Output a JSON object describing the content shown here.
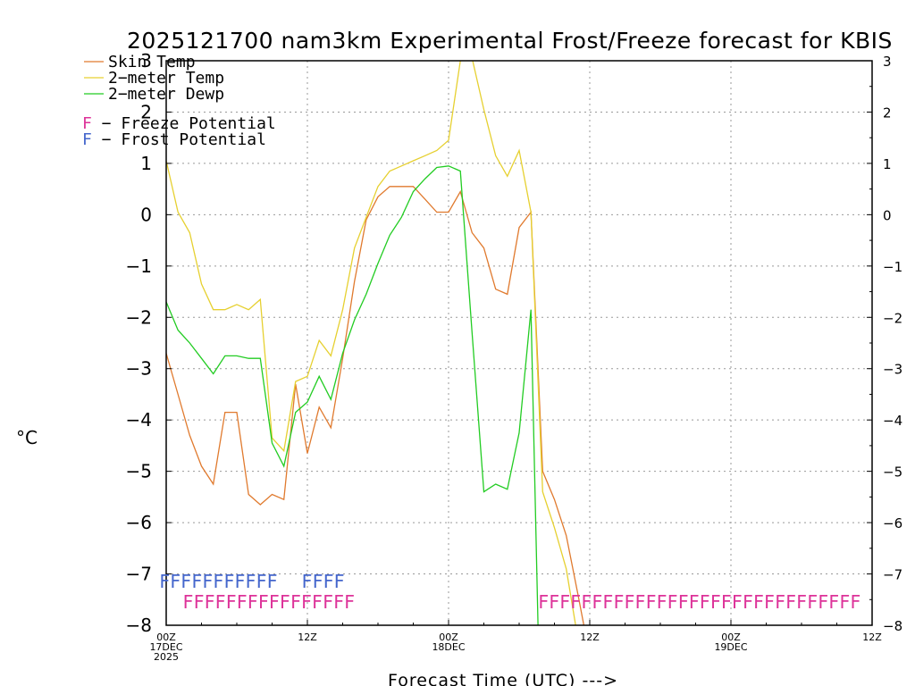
{
  "chart_data": {
    "type": "line",
    "title": "2025121700 nam3km Experimental Frost/Freeze forecast for KBIS",
    "xlabel": "Forecast Time (UTC) --->",
    "ylabel": "°C",
    "ylim": [
      -8,
      3
    ],
    "xlim": [
      0,
      60
    ],
    "yticks": [
      3,
      2,
      1,
      0,
      -1,
      -2,
      -3,
      -4,
      -5,
      -6,
      -7,
      -8
    ],
    "ytick_labels": [
      "3",
      "2",
      "1",
      "0",
      "−1",
      "−2",
      "−3",
      "−4",
      "−5",
      "−6",
      "−7",
      "−8"
    ],
    "xticks": [
      {
        "x": 0,
        "lines": [
          "00Z",
          "17DEC",
          "2025"
        ]
      },
      {
        "x": 12,
        "lines": [
          "12Z"
        ]
      },
      {
        "x": 24,
        "lines": [
          "00Z",
          "18DEC"
        ]
      },
      {
        "x": 36,
        "lines": [
          "12Z"
        ]
      },
      {
        "x": 48,
        "lines": [
          "00Z",
          "19DEC"
        ]
      },
      {
        "x": 60,
        "lines": [
          "12Z"
        ]
      }
    ],
    "grid": true,
    "legend_position": "top-left",
    "series": [
      {
        "name": "Skin Temp",
        "label": "Skin Temp",
        "color": "#e07a2e",
        "points": [
          [
            0,
            -2.7
          ],
          [
            1,
            -3.5
          ],
          [
            2,
            -4.3
          ],
          [
            3,
            -4.9
          ],
          [
            4,
            -5.25
          ],
          [
            5,
            -3.85
          ],
          [
            6,
            -3.85
          ],
          [
            7,
            -5.45
          ],
          [
            8,
            -5.65
          ],
          [
            9,
            -5.45
          ],
          [
            10,
            -5.55
          ],
          [
            11,
            -3.3
          ],
          [
            12,
            -4.65
          ],
          [
            13,
            -3.75
          ],
          [
            14,
            -4.15
          ],
          [
            15,
            -2.8
          ],
          [
            16,
            -1.3
          ],
          [
            17,
            -0.1
          ],
          [
            18,
            0.35
          ],
          [
            19,
            0.55
          ],
          [
            20,
            0.55
          ],
          [
            21,
            0.55
          ],
          [
            22,
            0.3
          ],
          [
            23,
            0.05
          ],
          [
            24,
            0.05
          ],
          [
            25,
            0.45
          ],
          [
            26,
            -0.35
          ],
          [
            27,
            -0.65
          ],
          [
            28,
            -1.45
          ],
          [
            29,
            -1.55
          ],
          [
            30,
            -0.25
          ],
          [
            31,
            0.05
          ],
          [
            32,
            -5.0
          ],
          [
            33,
            -5.55
          ],
          [
            34,
            -6.25
          ],
          [
            35,
            -7.4
          ],
          [
            35.5,
            -8.0
          ]
        ]
      },
      {
        "name": "2-meter Temp",
        "label": "2−meter Temp",
        "color": "#e6d030",
        "points": [
          [
            0,
            1.05
          ],
          [
            1,
            0.05
          ],
          [
            2,
            -0.35
          ],
          [
            3,
            -1.35
          ],
          [
            4,
            -1.85
          ],
          [
            5,
            -1.85
          ],
          [
            6,
            -1.75
          ],
          [
            7,
            -1.85
          ],
          [
            8,
            -1.65
          ],
          [
            9,
            -4.35
          ],
          [
            10,
            -4.6
          ],
          [
            11,
            -3.25
          ],
          [
            12,
            -3.15
          ],
          [
            13,
            -2.45
          ],
          [
            14,
            -2.75
          ],
          [
            15,
            -1.85
          ],
          [
            16,
            -0.65
          ],
          [
            17,
            -0.05
          ],
          [
            18,
            0.55
          ],
          [
            19,
            0.85
          ],
          [
            20,
            0.95
          ],
          [
            21,
            1.05
          ],
          [
            22,
            1.15
          ],
          [
            23,
            1.25
          ],
          [
            24,
            1.45
          ],
          [
            25,
            3.0
          ],
          [
            26,
            3.05
          ],
          [
            27,
            2.05
          ],
          [
            28,
            1.15
          ],
          [
            29,
            0.75
          ],
          [
            30,
            1.25
          ],
          [
            31,
            0.05
          ],
          [
            32,
            -5.4
          ],
          [
            33,
            -6.1
          ],
          [
            34,
            -6.9
          ],
          [
            34.8,
            -8.0
          ]
        ]
      },
      {
        "name": "2-meter Dewp",
        "label": "2−meter Dewp",
        "color": "#22cc22",
        "points": [
          [
            0,
            -1.7
          ],
          [
            1,
            -2.25
          ],
          [
            2,
            -2.5
          ],
          [
            3,
            -2.8
          ],
          [
            4,
            -3.1
          ],
          [
            5,
            -2.75
          ],
          [
            6,
            -2.75
          ],
          [
            7,
            -2.8
          ],
          [
            8,
            -2.8
          ],
          [
            9,
            -4.45
          ],
          [
            10,
            -4.9
          ],
          [
            11,
            -3.85
          ],
          [
            12,
            -3.65
          ],
          [
            13,
            -3.15
          ],
          [
            14,
            -3.6
          ],
          [
            15,
            -2.7
          ],
          [
            16,
            -2.05
          ],
          [
            17,
            -1.55
          ],
          [
            18,
            -0.95
          ],
          [
            19,
            -0.4
          ],
          [
            20,
            -0.05
          ],
          [
            21,
            0.45
          ],
          [
            22,
            0.7
          ],
          [
            23,
            0.92
          ],
          [
            24,
            0.95
          ],
          [
            25,
            0.85
          ],
          [
            26,
            -2.3
          ],
          [
            27,
            -5.4
          ],
          [
            28,
            -5.25
          ],
          [
            29,
            -5.35
          ],
          [
            30,
            -4.25
          ],
          [
            31,
            -1.85
          ],
          [
            31.6,
            -8.0
          ]
        ]
      }
    ],
    "flag_legend": [
      {
        "symbol": "F",
        "text": " − Freeze Potential",
        "color": "#dd3399"
      },
      {
        "symbol": "F",
        "text": " − Frost Potential",
        "color": "#4466cc"
      }
    ],
    "frost_flags": {
      "text_segments": [
        "FFFFFFFFFFF",
        "FFFF"
      ],
      "color": "#4466cc",
      "y_value": -7.15,
      "x_starts": [
        -0.6,
        11.5
      ]
    },
    "freeze_flags": {
      "text_segments": [
        "FFFFFFFFFFFFFFFF",
        "FFFFFFFFFFFFFFFFFFFFFFFFFFFFFF"
      ],
      "color": "#dd3399",
      "y_value": -7.55,
      "x_starts": [
        1.4,
        31.6
      ]
    }
  }
}
